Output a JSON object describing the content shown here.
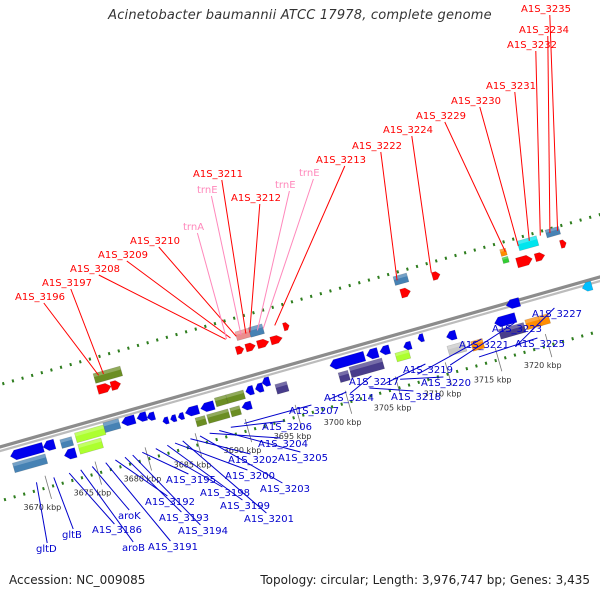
{
  "title": "Acinetobacter baumannii ATCC 17978, complete genome",
  "footer": {
    "accession": "Accession: NC_009085",
    "topology": "Topology: circular; Length: 3,976,747 bp; Genes: 3,435"
  },
  "colors": {
    "top_label": "#ff0000",
    "rna_label": "#ff88bb",
    "bottom_label": "#0000cc",
    "backbone": "#999999"
  },
  "kbp_ticks": [
    "3670 kbp",
    "3675 kbp",
    "3680 kbp",
    "3685 kbp",
    "3690 kbp",
    "3695 kbp",
    "3700 kbp",
    "3705 kbp",
    "3710 kbp",
    "3715 kbp",
    "3720 kbp"
  ],
  "top_labels": [
    "A1S_3196",
    "A1S_3197",
    "A1S_3208",
    "A1S_3209",
    "A1S_3210",
    "trnA",
    "trnE",
    "A1S_3211",
    "A1S_3212",
    "trnE",
    "trnE",
    "A1S_3213",
    "A1S_3222",
    "A1S_3224",
    "A1S_3229",
    "A1S_3230",
    "A1S_3231",
    "A1S_3232",
    "A1S_3234",
    "A1S_3235"
  ],
  "bottom_labels": [
    "gltD",
    "gltB",
    "A1S_3186",
    "aroB",
    "aroK",
    "A1S_3191",
    "A1S_3192",
    "A1S_3193",
    "A1S_3194",
    "A1S_3195",
    "A1S_3198",
    "A1S_3199",
    "A1S_3200",
    "A1S_3201",
    "A1S_3202",
    "A1S_3203",
    "A1S_3204",
    "A1S_3205",
    "A1S_3206",
    "A1S_3207",
    "A1S_3214",
    "A1S_3217",
    "A1S_3218",
    "A1S_3219",
    "A1S_3220",
    "A1S_3221",
    "A1S_3223",
    "A1S_3225",
    "A1S_3227"
  ]
}
